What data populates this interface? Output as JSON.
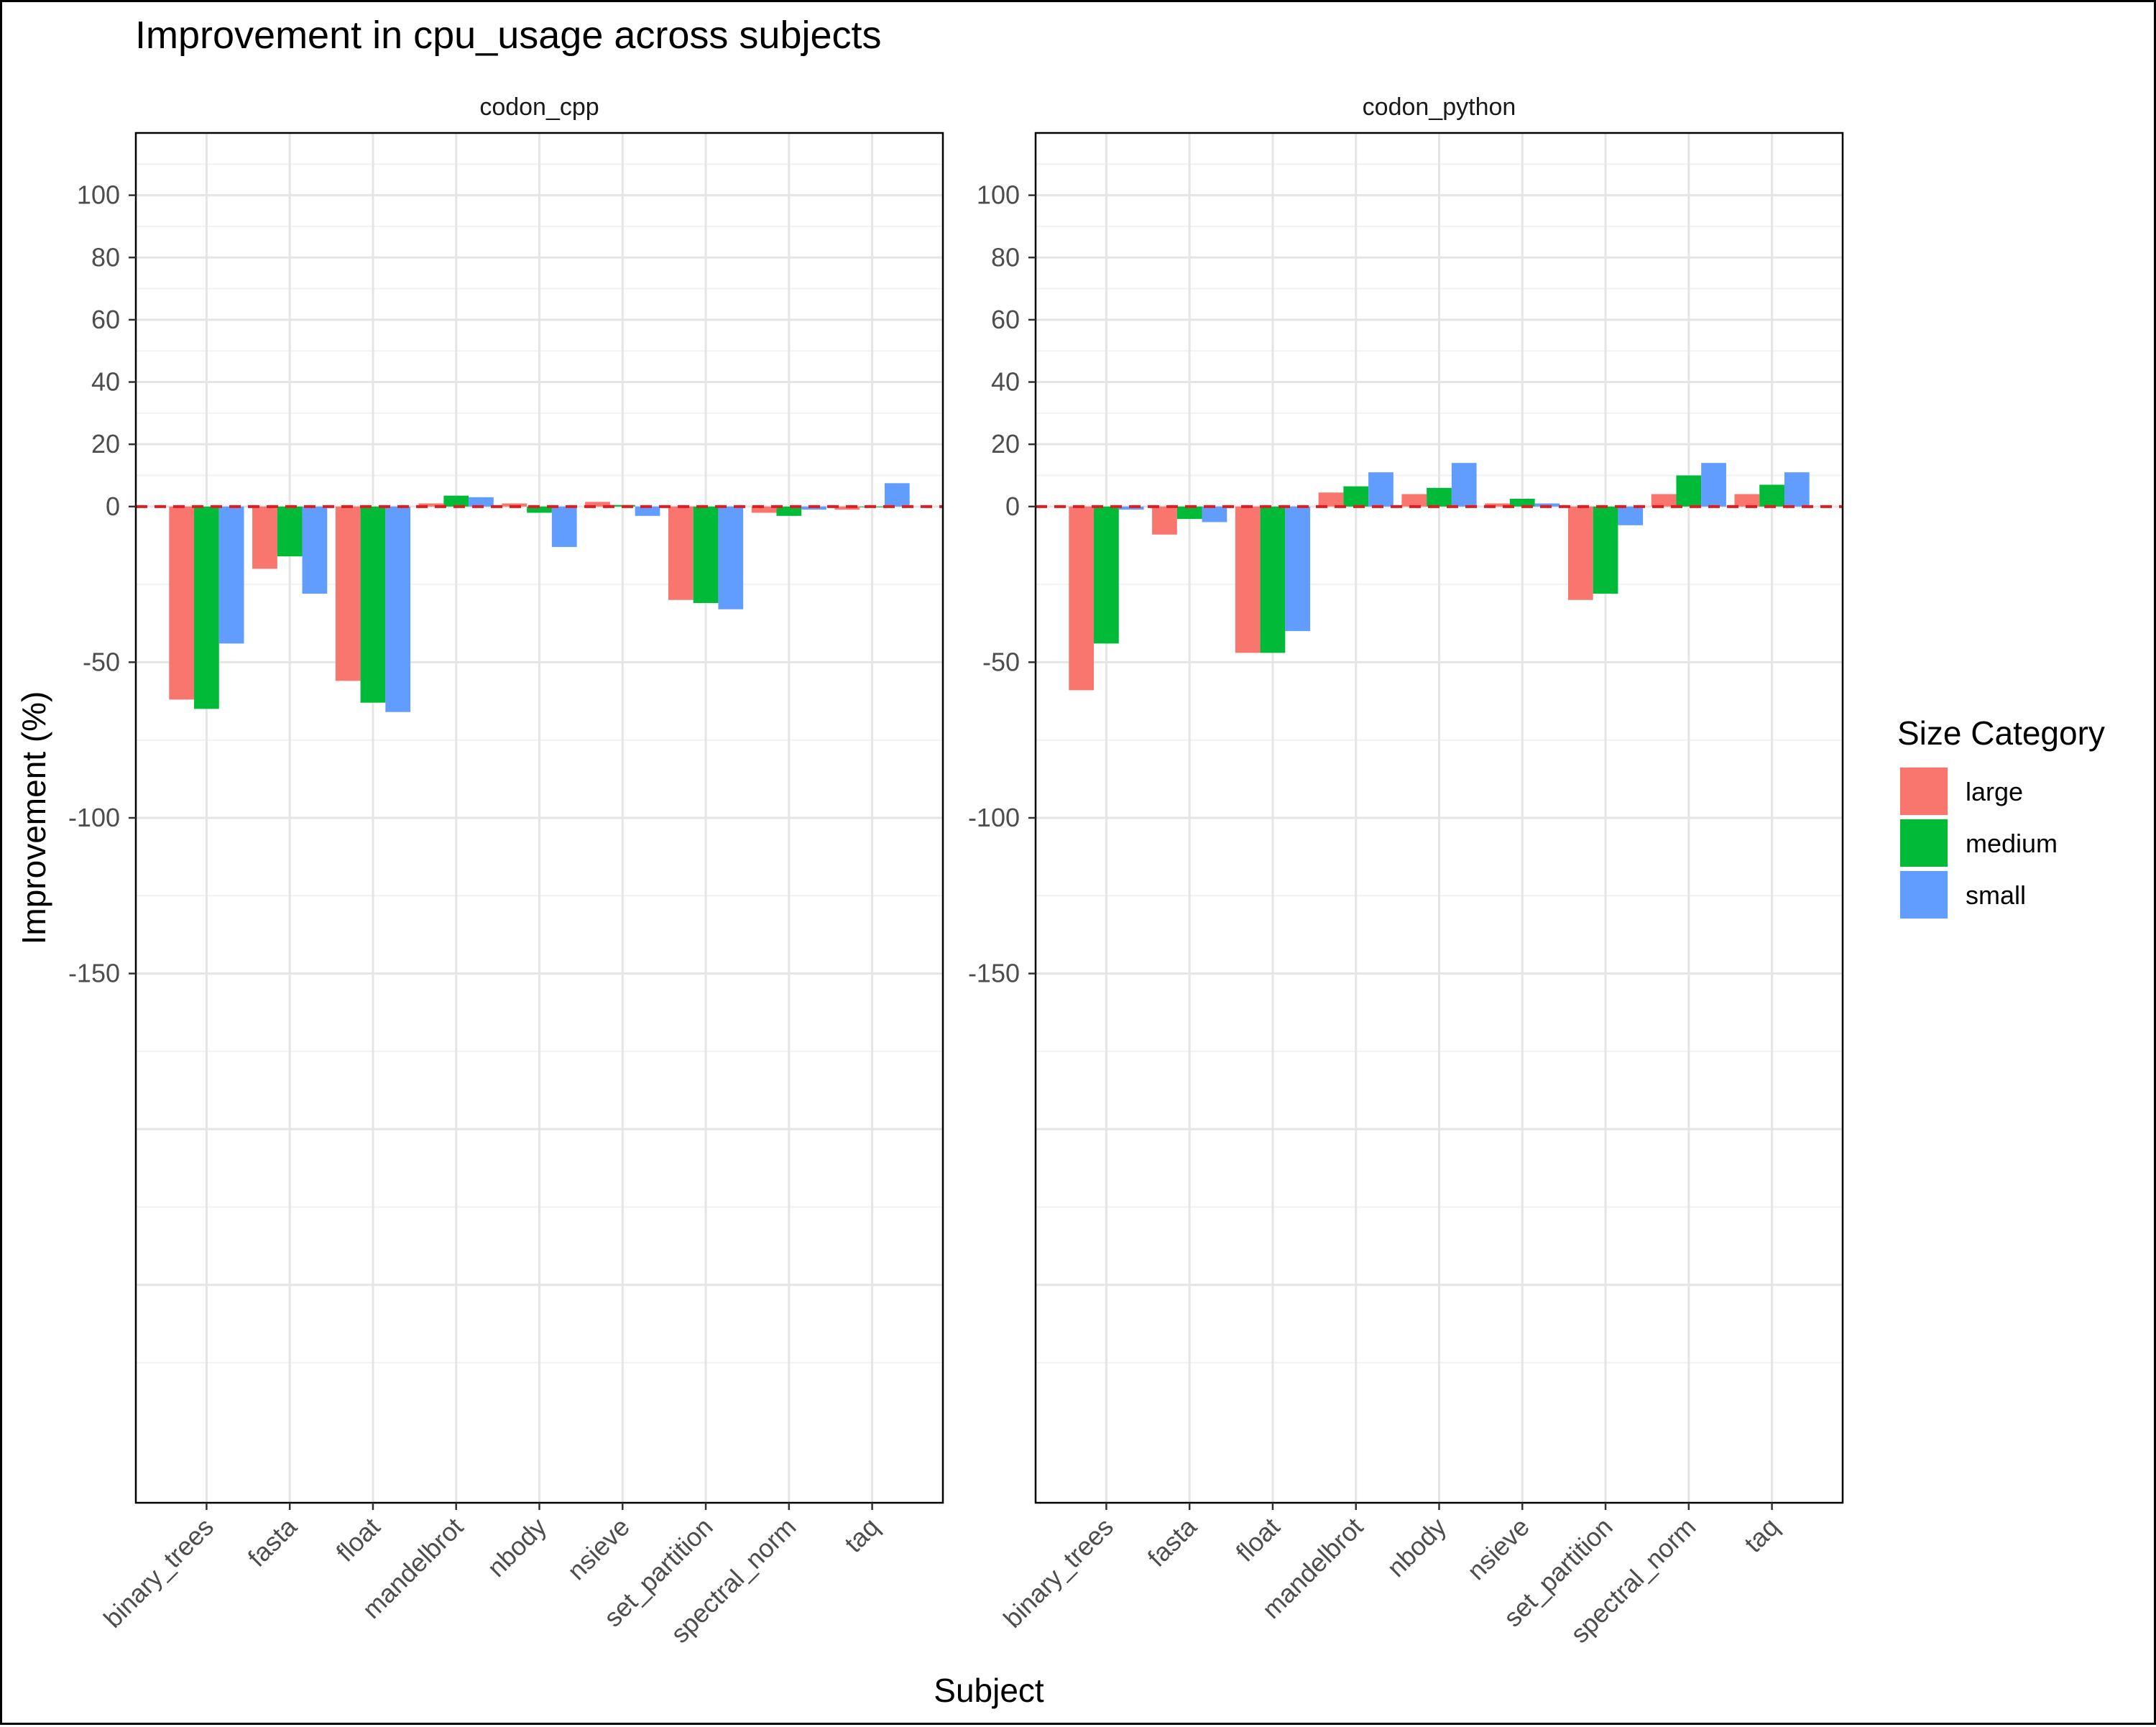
{
  "chart_data": {
    "type": "bar",
    "title": "Improvement in cpu_usage across subjects",
    "xlabel": "Subject",
    "ylabel": "Improvement (%)",
    "yticks": [
      100,
      80,
      60,
      40,
      20,
      0,
      -50,
      -100,
      -150
    ],
    "ylim": [
      -320,
      120
    ],
    "grid": true,
    "legend": {
      "title": "Size Category",
      "position": "right",
      "entries": [
        {
          "name": "large",
          "color": "#F8766D"
        },
        {
          "name": "medium",
          "color": "#00BA38"
        },
        {
          "name": "small",
          "color": "#619CFF"
        }
      ]
    },
    "reference_line": {
      "y": 0,
      "color": "#E41A1C",
      "style": "dashed"
    },
    "categories": [
      "binary_trees",
      "fasta",
      "float",
      "mandelbrot",
      "nbody",
      "nsieve",
      "set_partition",
      "spectral_norm",
      "taq"
    ],
    "panels": [
      {
        "name": "codon_cpp",
        "series": [
          {
            "name": "large",
            "values": [
              -62,
              -20,
              -56,
              1,
              1,
              1.5,
              -30,
              -2,
              -1
            ]
          },
          {
            "name": "medium",
            "values": [
              -65,
              -16,
              -63,
              3.5,
              -2,
              0.5,
              -31,
              -3,
              0
            ]
          },
          {
            "name": "small",
            "values": [
              -44,
              -28,
              -66,
              3,
              -13,
              -3,
              -33,
              -1,
              7.5
            ]
          }
        ]
      },
      {
        "name": "codon_python",
        "series": [
          {
            "name": "large",
            "values": [
              -59,
              -9,
              -47,
              4.5,
              4,
              1,
              -30,
              4,
              4
            ]
          },
          {
            "name": "medium",
            "values": [
              -44,
              -4,
              -47,
              6.5,
              6,
              2.5,
              -28,
              10,
              7
            ]
          },
          {
            "name": "small",
            "values": [
              -1,
              -5,
              -40,
              11,
              14,
              1,
              -6,
              14,
              11
            ]
          }
        ]
      }
    ]
  }
}
